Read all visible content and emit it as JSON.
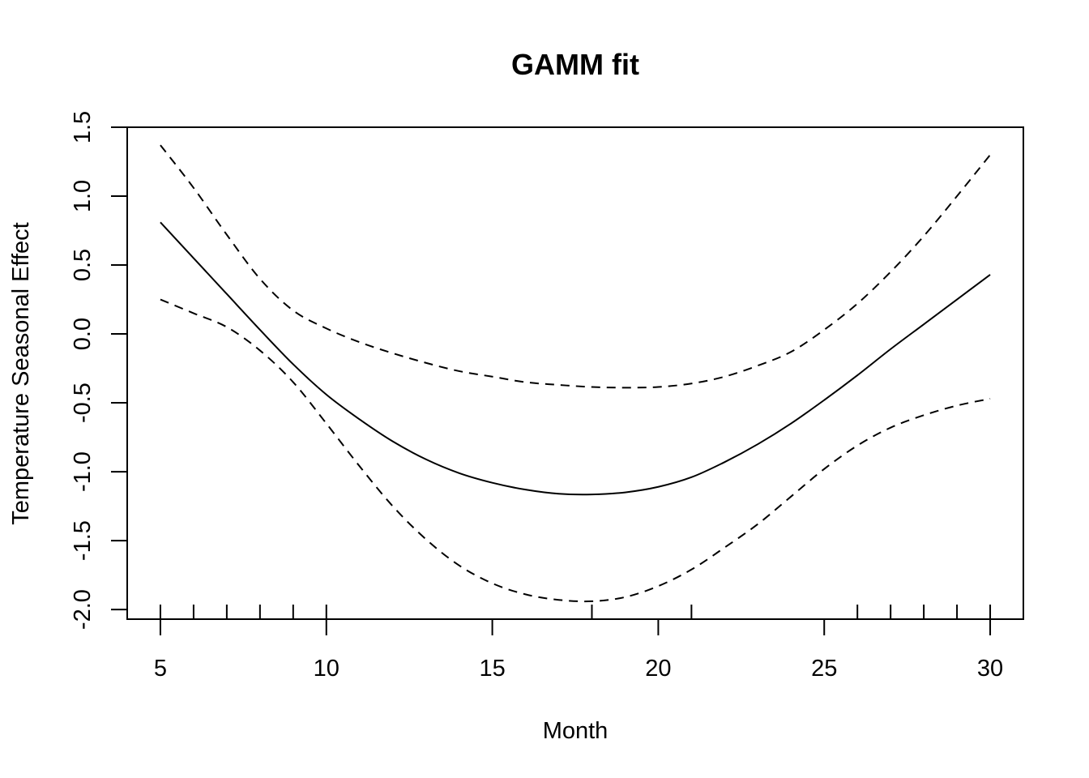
{
  "chart_data": {
    "type": "line",
    "title": "GAMM fit",
    "xlabel": "Month",
    "ylabel": "Temperature Seasonal Effect",
    "xlim": [
      4,
      31
    ],
    "ylim": [
      -2.07,
      1.5
    ],
    "x_ticks": [
      5,
      10,
      15,
      20,
      25,
      30
    ],
    "y_ticks": [
      -2.0,
      -1.5,
      -1.0,
      -0.5,
      0.0,
      0.5,
      1.0,
      1.5
    ],
    "x_tick_labels": [
      "5",
      "10",
      "15",
      "20",
      "25",
      "30"
    ],
    "y_tick_labels": [
      "-2.0",
      "-1.5",
      "-1.0",
      "-0.5",
      "0.0",
      "0.5",
      "1.0",
      "1.5"
    ],
    "rug": [
      5,
      6,
      7,
      8,
      9,
      10,
      18,
      21,
      26,
      27,
      28,
      29,
      30
    ],
    "grid": false,
    "series": [
      {
        "role": "fit",
        "style": "solid",
        "x": [
          5,
          6,
          7,
          8,
          9,
          10,
          11,
          12,
          13,
          14,
          15,
          16,
          17,
          18,
          19,
          20,
          21,
          22,
          23,
          24,
          25,
          26,
          27,
          28,
          29,
          30
        ],
        "y": [
          0.81,
          0.55,
          0.29,
          0.03,
          -0.22,
          -0.44,
          -0.62,
          -0.78,
          -0.91,
          -1.01,
          -1.08,
          -1.13,
          -1.16,
          -1.165,
          -1.15,
          -1.11,
          -1.04,
          -0.93,
          -0.8,
          -0.65,
          -0.48,
          -0.3,
          -0.11,
          0.07,
          0.25,
          0.43
        ]
      },
      {
        "role": "upper",
        "style": "dashed",
        "x": [
          5,
          6,
          7,
          8,
          9,
          10,
          11,
          12,
          13,
          14,
          15,
          16,
          17,
          18,
          19,
          20,
          21,
          22,
          23,
          24,
          25,
          26,
          27,
          28,
          29,
          30
        ],
        "y": [
          1.37,
          1.06,
          0.72,
          0.4,
          0.17,
          0.04,
          -0.06,
          -0.14,
          -0.21,
          -0.27,
          -0.31,
          -0.35,
          -0.37,
          -0.385,
          -0.39,
          -0.385,
          -0.36,
          -0.31,
          -0.23,
          -0.13,
          0.03,
          0.22,
          0.45,
          0.71,
          1.0,
          1.3
        ]
      },
      {
        "role": "lower",
        "style": "dashed",
        "x": [
          5,
          6,
          7,
          8,
          9,
          10,
          11,
          12,
          13,
          14,
          15,
          16,
          17,
          18,
          19,
          20,
          21,
          22,
          23,
          24,
          25,
          26,
          27,
          28,
          29,
          30
        ],
        "y": [
          0.25,
          0.15,
          0.05,
          -0.12,
          -0.35,
          -0.65,
          -0.96,
          -1.25,
          -1.49,
          -1.68,
          -1.81,
          -1.89,
          -1.93,
          -1.94,
          -1.91,
          -1.83,
          -1.71,
          -1.55,
          -1.38,
          -1.18,
          -0.98,
          -0.81,
          -0.68,
          -0.59,
          -0.52,
          -0.47
        ]
      }
    ]
  }
}
